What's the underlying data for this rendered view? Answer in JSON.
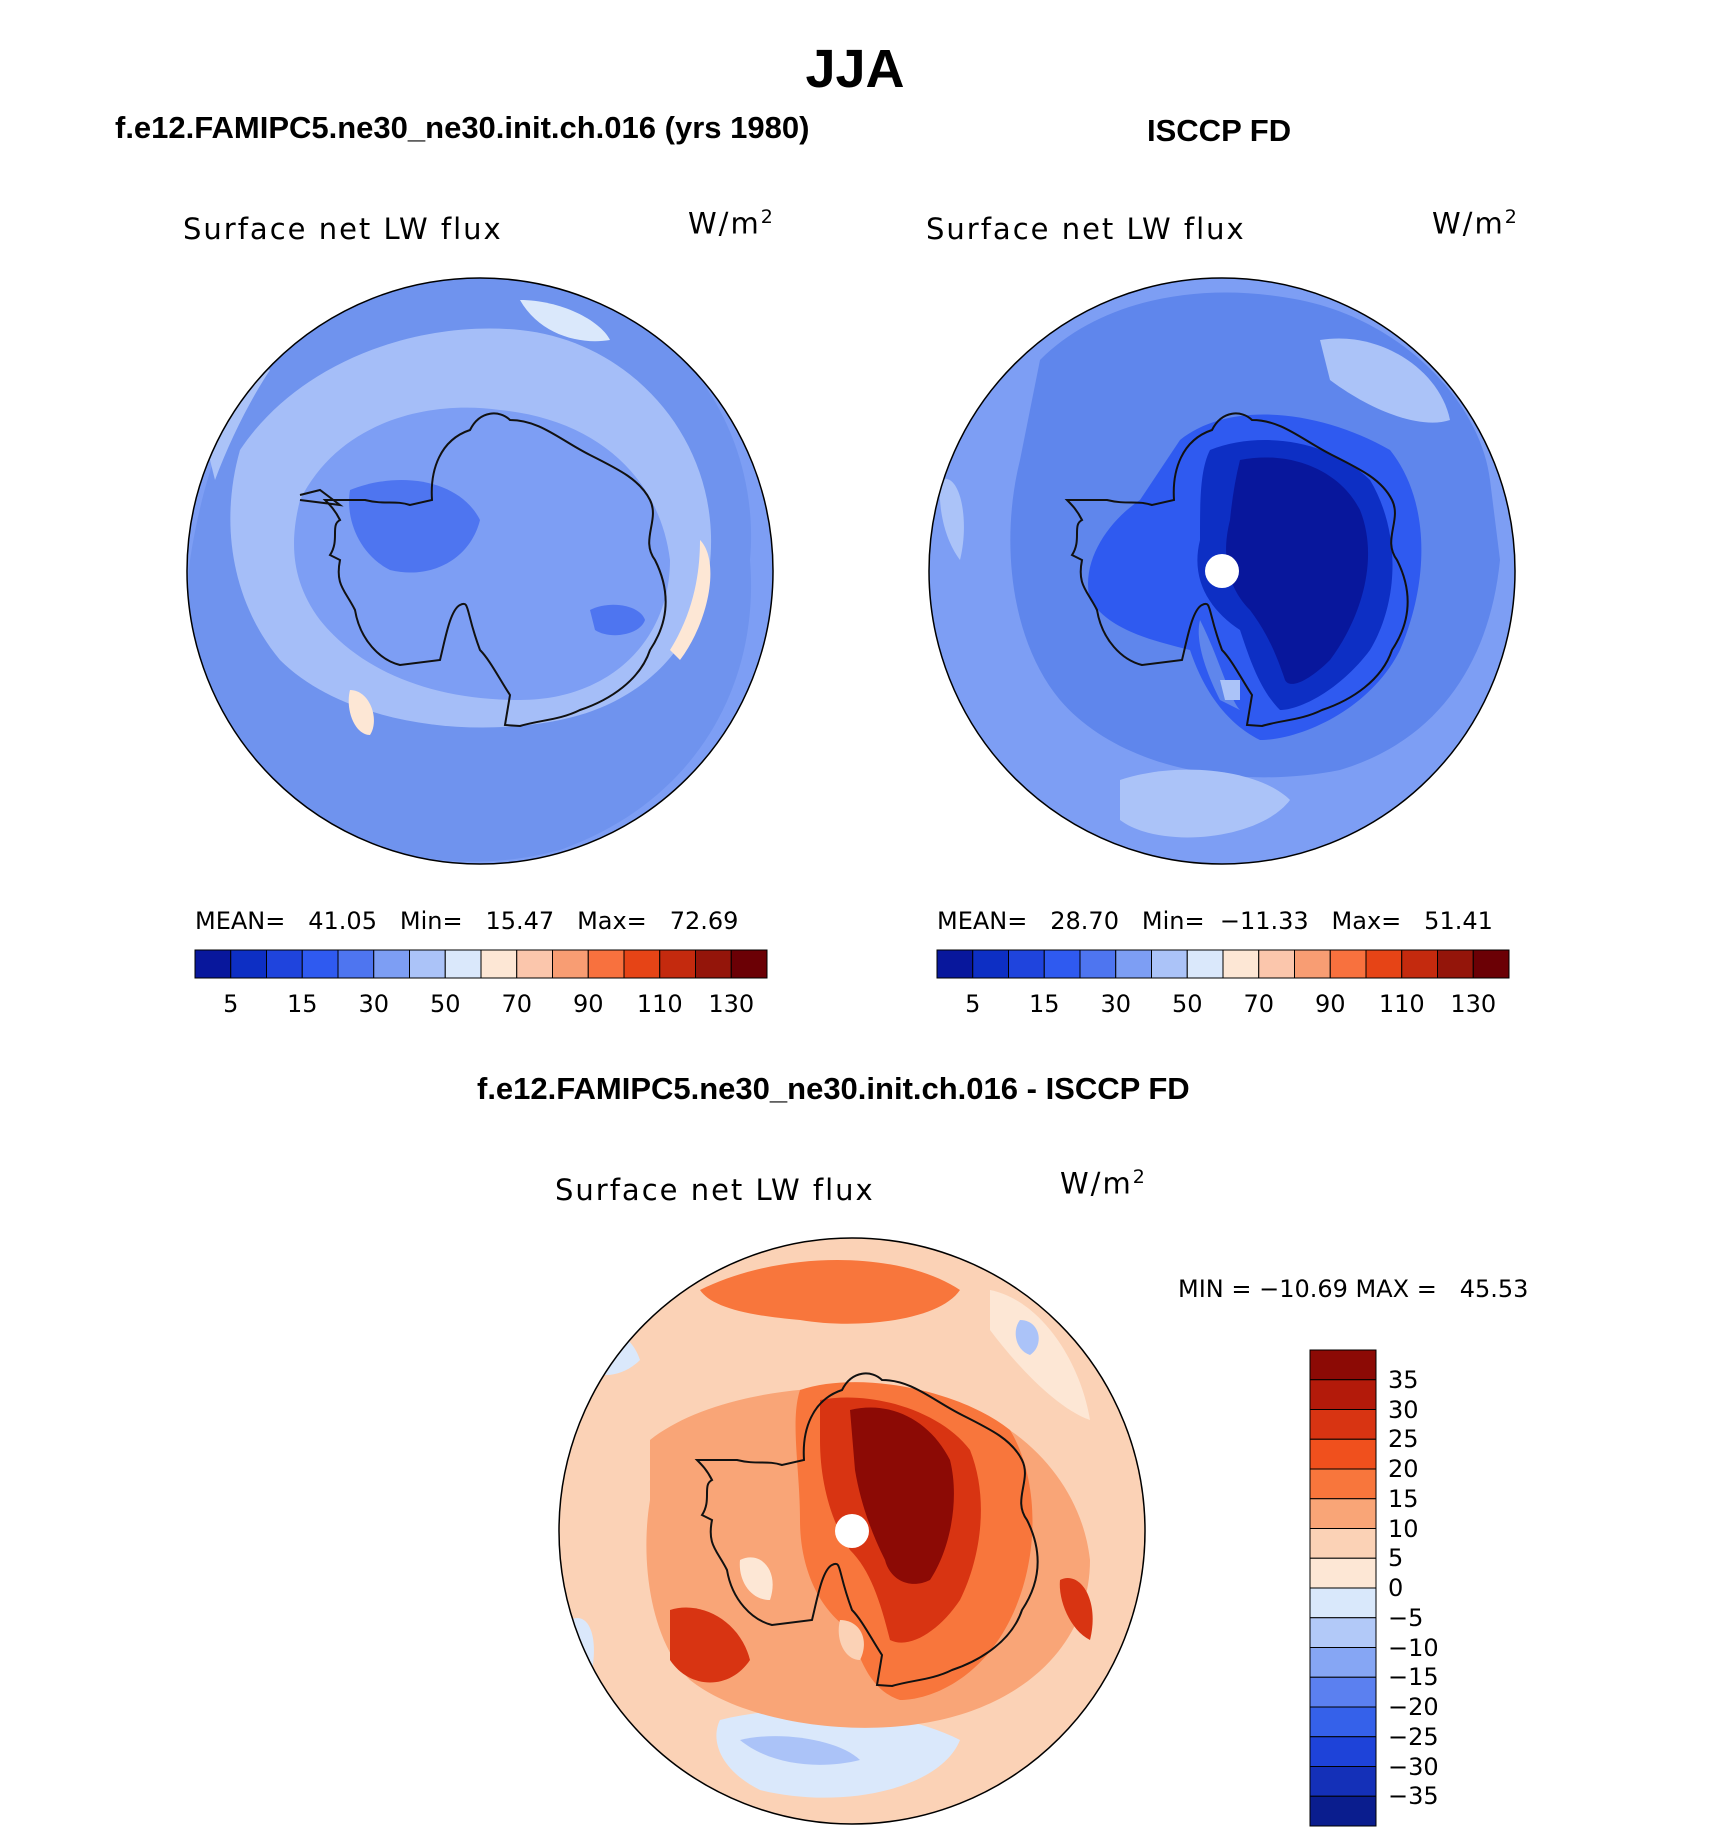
{
  "title": "JJA",
  "panels": [
    {
      "id": "model",
      "header": "f.e12.FAMIPC5.ne30_ne30.init.ch.016 (yrs 1980)",
      "variable": "Surface net LW flux",
      "units": "W/m",
      "units_sup": "2",
      "stats": {
        "mean_label": "MEAN=",
        "mean": "41.05",
        "min_label": "Min=",
        "min": "15.47",
        "max_label": "Max=",
        "max": "72.69"
      },
      "colorbar": {
        "colors": [
          "#08179c",
          "#0d2fc4",
          "#1f44dd",
          "#2f5af0",
          "#4e75f0",
          "#7d9ef4",
          "#abc3f8",
          "#dae8fb",
          "#fde7d5",
          "#fbc6ac",
          "#f89d73",
          "#f8713e",
          "#e64416",
          "#c42a0e",
          "#94150a",
          "#6b0005"
        ],
        "labels": [
          "5",
          "15",
          "30",
          "50",
          "70",
          "90",
          "110",
          "130"
        ]
      },
      "map": {
        "base": "#6f93ee",
        "pole_dot": false
      }
    },
    {
      "id": "obs",
      "header": "ISCCP FD",
      "variable": "Surface net LW flux",
      "units": "W/m",
      "units_sup": "2",
      "stats": {
        "mean_label": "MEAN=",
        "mean": "28.70",
        "min_label": "Min=",
        "min": "−11.33",
        "max_label": "Max=",
        "max": "51.41"
      },
      "colorbar": {
        "colors": [
          "#08179c",
          "#0d2fc4",
          "#1f44dd",
          "#2f5af0",
          "#4e75f0",
          "#7d9ef4",
          "#abc3f8",
          "#dae8fb",
          "#fde7d5",
          "#fbc6ac",
          "#f89d73",
          "#f8713e",
          "#e64416",
          "#c42a0e",
          "#94150a",
          "#6b0005"
        ],
        "labels": [
          "5",
          "15",
          "30",
          "50",
          "70",
          "90",
          "110",
          "130"
        ]
      },
      "map": {
        "base": "#5f86ec",
        "pole_dot": true
      }
    }
  ],
  "diff": {
    "header": "f.e12.FAMIPC5.ne30_ne30.init.ch.016 - ISCCP FD",
    "variable": "Surface net LW flux",
    "units": "W/m",
    "units_sup": "2",
    "minmax": "MIN = −10.69 MAX =   45.53",
    "colorbar": {
      "colors_top_to_bottom": [
        "#8c0a05",
        "#b31a0a",
        "#d83412",
        "#f0501d",
        "#f8763c",
        "#f9a577",
        "#fbd2b6",
        "#fde7d5",
        "#d9e8fb",
        "#b2c9f8",
        "#86a6f4",
        "#5b80f0",
        "#3561ea",
        "#1e43d9",
        "#1430b8",
        "#0a1d8e"
      ],
      "labels": [
        "35",
        "30",
        "25",
        "20",
        "15",
        "10",
        "5",
        "0",
        "−5",
        "−10",
        "−15",
        "−20",
        "−25",
        "−30",
        "−35"
      ]
    },
    "map": {
      "base": "#fbd2b6",
      "pole_dot": true
    }
  }
}
